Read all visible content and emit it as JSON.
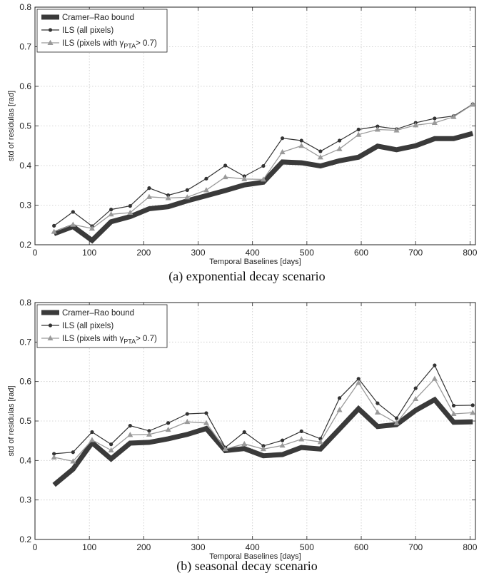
{
  "colors": {
    "cramer": "#3a3a3a",
    "ils_all": "#333333",
    "ils_pta": "#9a9a9a"
  },
  "captions": [
    "(a)  exponential decay scenario",
    "(b)  seasonal decay scenario"
  ],
  "chart_data": [
    {
      "type": "line",
      "xlabel": "Temporal Baselines [days]",
      "ylabel": "std of residulas [rad]",
      "xlim": [
        0,
        810
      ],
      "ylim": [
        0.2,
        0.8
      ],
      "xticks": [
        0,
        100,
        200,
        300,
        400,
        500,
        600,
        700,
        800
      ],
      "yticks": [
        0.2,
        0.3,
        0.4,
        0.5,
        0.6,
        0.7,
        0.8
      ],
      "grid": true,
      "legend_position": "top-left",
      "x": [
        35,
        70,
        105,
        140,
        175,
        210,
        245,
        280,
        315,
        350,
        385,
        420,
        455,
        490,
        525,
        560,
        595,
        630,
        665,
        700,
        735,
        770,
        805
      ],
      "series": [
        {
          "name": "Cramer–Rao bound",
          "style": "thick",
          "values": [
            0.228,
            0.246,
            0.211,
            0.258,
            0.271,
            0.291,
            0.296,
            0.311,
            0.324,
            0.337,
            0.351,
            0.358,
            0.409,
            0.407,
            0.399,
            0.412,
            0.421,
            0.449,
            0.44,
            0.45,
            0.468,
            0.468,
            0.481
          ]
        },
        {
          "name": "ILS (all pixels)",
          "style": "circle",
          "values": [
            0.248,
            0.283,
            0.247,
            0.289,
            0.298,
            0.343,
            0.325,
            0.338,
            0.367,
            0.4,
            0.373,
            0.399,
            0.469,
            0.463,
            0.436,
            0.463,
            0.491,
            0.499,
            0.492,
            0.508,
            0.519,
            0.525,
            0.555
          ]
        },
        {
          "name": "ILS (pixels with γ_PTA > 0.7)",
          "legend_prefix": "ILS (pixels with γ",
          "legend_sub": "PTA",
          "legend_suffix": "> 0.7)",
          "style": "triangle",
          "values": [
            0.233,
            0.251,
            0.241,
            0.277,
            0.281,
            0.321,
            0.318,
            0.32,
            0.338,
            0.371,
            0.366,
            0.365,
            0.434,
            0.45,
            0.421,
            0.442,
            0.478,
            0.491,
            0.489,
            0.502,
            0.508,
            0.523,
            0.554
          ]
        }
      ]
    },
    {
      "type": "line",
      "xlabel": "Temporal Baselines [days]",
      "ylabel": "std of residulas [rad]",
      "xlim": [
        0,
        810
      ],
      "ylim": [
        0.2,
        0.8
      ],
      "xticks": [
        0,
        100,
        200,
        300,
        400,
        500,
        600,
        700,
        800
      ],
      "yticks": [
        0.2,
        0.3,
        0.4,
        0.5,
        0.6,
        0.7,
        0.8
      ],
      "grid": true,
      "legend_position": "top-left",
      "x": [
        35,
        70,
        105,
        140,
        175,
        210,
        245,
        280,
        315,
        350,
        385,
        420,
        455,
        490,
        525,
        560,
        595,
        630,
        665,
        700,
        735,
        770,
        805
      ],
      "series": [
        {
          "name": "Cramer–Rao bound",
          "style": "thick",
          "values": [
            0.338,
            0.378,
            0.445,
            0.404,
            0.444,
            0.446,
            0.455,
            0.466,
            0.481,
            0.425,
            0.43,
            0.412,
            0.415,
            0.433,
            0.429,
            0.48,
            0.531,
            0.486,
            0.491,
            0.527,
            0.554,
            0.497,
            0.498
          ]
        },
        {
          "name": "ILS (all pixels)",
          "style": "circle",
          "values": [
            0.417,
            0.421,
            0.472,
            0.441,
            0.488,
            0.475,
            0.495,
            0.518,
            0.52,
            0.433,
            0.472,
            0.437,
            0.451,
            0.474,
            0.455,
            0.558,
            0.607,
            0.545,
            0.507,
            0.583,
            0.641,
            0.539,
            0.54
          ]
        },
        {
          "name": "ILS (pixels with γ_PTA > 0.7)",
          "legend_prefix": "ILS (pixels with γ",
          "legend_sub": "PTA",
          "legend_suffix": "> 0.7)",
          "style": "triangle",
          "values": [
            0.408,
            0.398,
            0.452,
            0.426,
            0.465,
            0.466,
            0.478,
            0.498,
            0.495,
            0.429,
            0.442,
            0.429,
            0.438,
            0.454,
            0.447,
            0.528,
            0.597,
            0.522,
            0.495,
            0.556,
            0.607,
            0.518,
            0.521
          ]
        }
      ]
    }
  ]
}
